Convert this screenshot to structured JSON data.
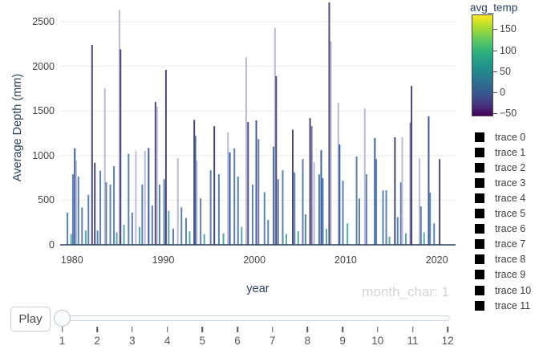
{
  "chart_data": {
    "type": "bar",
    "title": "",
    "xlabel": "year",
    "ylabel": "Average Depth (mm)",
    "xlim": [
      1978.7,
      2022.05
    ],
    "ylim": [
      0,
      2750
    ],
    "x_ticks": [
      1980,
      1990,
      2000,
      2010,
      2020
    ],
    "y_ticks": [
      0,
      500,
      1000,
      1500,
      2000,
      2500
    ],
    "grid": "horizontal-only",
    "legend_position": "right",
    "legend_entries": [
      "trace 0",
      "trace 1",
      "trace 2",
      "trace 3",
      "trace 4",
      "trace 5",
      "trace 6",
      "trace 7",
      "trace 8",
      "trace 9",
      "trace 10",
      "trace 11"
    ],
    "legend_marker_color": "#000000",
    "colorbar": {
      "title": "avg_temp",
      "colormap": "viridis",
      "range": [
        -57,
        185
      ],
      "ticks": [
        150,
        100,
        50,
        0,
        -50
      ]
    },
    "palette": {
      "steel": "#5d81b0",
      "indigo": "#4b4a77",
      "lavender": "#bdbad8",
      "teal": "#58a7ad",
      "darkblue": "#3c5f9e",
      "purple": "#7b77ab"
    },
    "bars": [
      [
        1979.5,
        360,
        "steel"
      ],
      [
        1979.9,
        120,
        "teal"
      ],
      [
        1980.1,
        790,
        "steel"
      ],
      [
        1980.3,
        1080,
        "darkblue"
      ],
      [
        1980.45,
        945,
        "lavender"
      ],
      [
        1980.7,
        765,
        "steel"
      ],
      [
        1981.1,
        420,
        "steel"
      ],
      [
        1981.5,
        160,
        "teal"
      ],
      [
        1981.8,
        560,
        "steel"
      ],
      [
        1982.2,
        2240,
        "indigo"
      ],
      [
        1982.5,
        918,
        "indigo"
      ],
      [
        1982.8,
        160,
        "steel"
      ],
      [
        1983.1,
        830,
        "steel"
      ],
      [
        1983.6,
        1755,
        "lavender"
      ],
      [
        1983.75,
        700,
        "steel"
      ],
      [
        1984.2,
        675,
        "steel"
      ],
      [
        1984.6,
        880,
        "steel"
      ],
      [
        1984.9,
        140,
        "teal"
      ],
      [
        1985.2,
        2630,
        "lavender"
      ],
      [
        1985.32,
        2190,
        "indigo"
      ],
      [
        1985.7,
        225,
        "teal"
      ],
      [
        1986.2,
        1020,
        "steel"
      ],
      [
        1986.6,
        360,
        "steel"
      ],
      [
        1987.0,
        1050,
        "lavender"
      ],
      [
        1987.4,
        200,
        "teal"
      ],
      [
        1987.7,
        675,
        "steel"
      ],
      [
        1988.0,
        1053,
        "lavender"
      ],
      [
        1988.4,
        1085,
        "darkblue"
      ],
      [
        1988.8,
        440,
        "steel"
      ],
      [
        1989.15,
        1600,
        "indigo"
      ],
      [
        1989.32,
        1545,
        "lavender"
      ],
      [
        1989.6,
        675,
        "steel"
      ],
      [
        1990.1,
        735,
        "steel"
      ],
      [
        1990.3,
        1960,
        "indigo"
      ],
      [
        1990.6,
        380,
        "teal"
      ],
      [
        1991.1,
        180,
        "steel"
      ],
      [
        1991.6,
        970,
        "lavender"
      ],
      [
        1992.0,
        420,
        "steel"
      ],
      [
        1992.5,
        300,
        "steel"
      ],
      [
        1992.9,
        150,
        "teal"
      ],
      [
        1993.4,
        1400,
        "indigo"
      ],
      [
        1993.52,
        1220,
        "darkblue"
      ],
      [
        1993.68,
        945,
        "lavender"
      ],
      [
        1994.1,
        520,
        "steel"
      ],
      [
        1994.5,
        120,
        "teal"
      ],
      [
        1995.2,
        835,
        "steel"
      ],
      [
        1995.6,
        1330,
        "indigo"
      ],
      [
        1996.1,
        790,
        "steel"
      ],
      [
        1996.6,
        130,
        "teal"
      ],
      [
        1997.1,
        1260,
        "lavender"
      ],
      [
        1997.3,
        1035,
        "darkblue"
      ],
      [
        1997.8,
        1080,
        "steel"
      ],
      [
        1998.2,
        765,
        "steel"
      ],
      [
        1998.6,
        200,
        "teal"
      ],
      [
        1999.1,
        2100,
        "lavender"
      ],
      [
        1999.3,
        1375,
        "indigo"
      ],
      [
        1999.8,
        675,
        "steel"
      ],
      [
        2000.2,
        1395,
        "darkblue"
      ],
      [
        2000.45,
        1185,
        "purple"
      ],
      [
        2001.1,
        590,
        "steel"
      ],
      [
        2001.5,
        280,
        "steel"
      ],
      [
        2002.1,
        1100,
        "darkblue"
      ],
      [
        2002.25,
        2430,
        "lavender"
      ],
      [
        2002.38,
        1890,
        "indigo"
      ],
      [
        2002.6,
        735,
        "steel"
      ],
      [
        2003.1,
        835,
        "steel"
      ],
      [
        2003.5,
        120,
        "teal"
      ],
      [
        2004.2,
        1290,
        "indigo"
      ],
      [
        2004.4,
        810,
        "steel"
      ],
      [
        2004.8,
        150,
        "teal"
      ],
      [
        2005.3,
        960,
        "steel"
      ],
      [
        2005.6,
        340,
        "steel"
      ],
      [
        2006.1,
        1420,
        "indigo"
      ],
      [
        2006.28,
        1330,
        "purple"
      ],
      [
        2006.55,
        925,
        "lavender"
      ],
      [
        2007.1,
        790,
        "steel"
      ],
      [
        2007.32,
        1060,
        "darkblue"
      ],
      [
        2007.5,
        745,
        "steel"
      ],
      [
        2007.9,
        180,
        "teal"
      ],
      [
        2008.2,
        2715,
        "indigo"
      ],
      [
        2008.38,
        2280,
        "lavender"
      ],
      [
        2009.2,
        1590,
        "lavender"
      ],
      [
        2009.33,
        1125,
        "darkblue"
      ],
      [
        2009.7,
        720,
        "steel"
      ],
      [
        2010.2,
        240,
        "teal"
      ],
      [
        2011.2,
        990,
        "steel"
      ],
      [
        2011.5,
        520,
        "steel"
      ],
      [
        2012.1,
        1530,
        "lavender"
      ],
      [
        2012.28,
        790,
        "steel"
      ],
      [
        2013.2,
        1195,
        "darkblue"
      ],
      [
        2013.35,
        960,
        "steel"
      ],
      [
        2014.1,
        610,
        "steel"
      ],
      [
        2014.45,
        610,
        "steel"
      ],
      [
        2014.8,
        90,
        "teal"
      ],
      [
        2015.4,
        1205,
        "indigo"
      ],
      [
        2015.7,
        310,
        "steel"
      ],
      [
        2016.05,
        700,
        "steel"
      ],
      [
        2016.2,
        1205,
        "lavender"
      ],
      [
        2016.6,
        130,
        "teal"
      ],
      [
        2017.1,
        1370,
        "purple"
      ],
      [
        2017.22,
        1780,
        "indigo"
      ],
      [
        2018.1,
        970,
        "lavender"
      ],
      [
        2018.25,
        430,
        "steel"
      ],
      [
        2018.6,
        140,
        "teal"
      ],
      [
        2019.1,
        1440,
        "darkblue"
      ],
      [
        2019.25,
        585,
        "steel"
      ],
      [
        2019.7,
        240,
        "steel"
      ],
      [
        2020.3,
        960,
        "indigo"
      ]
    ]
  },
  "axes": {
    "y_title": "Average Depth (mm)",
    "x_title": "year"
  },
  "colorbar": {
    "title": "avg_temp"
  },
  "controls": {
    "play_label": "Play",
    "frame_label": "month_char: 1",
    "slider_value": "1",
    "slider_ticks": [
      "1",
      "2",
      "3",
      "4",
      "5",
      "6",
      "7",
      "8",
      "9",
      "10",
      "11",
      "12"
    ]
  },
  "colors": {
    "grid": "#e9ebee",
    "axis_line": "#2a3f5f",
    "tick_text": "#444444",
    "title_text": "#2a3f5f",
    "frame_label_text": "#d5d5d5"
  }
}
